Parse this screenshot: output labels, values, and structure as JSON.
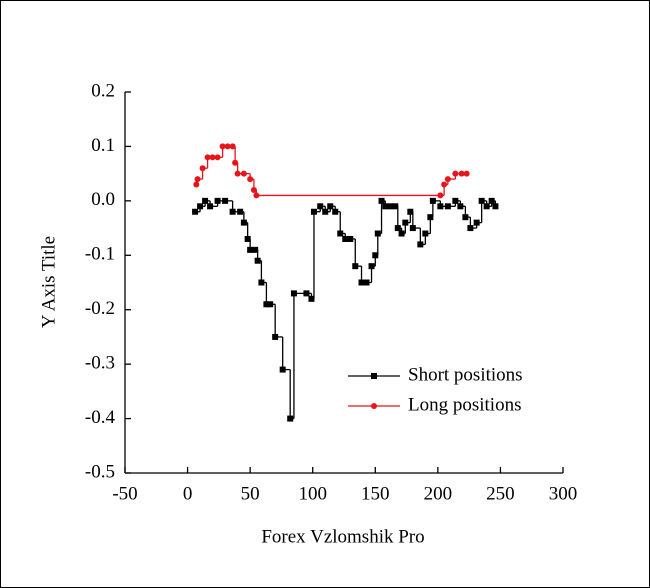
{
  "chart_data": {
    "type": "line",
    "step": "post",
    "x_label": "Forex Vzlomshik Pro",
    "y_label": "Y Axis Title",
    "xlim": [
      -50,
      300
    ],
    "xticks": [
      -50,
      0,
      50,
      100,
      150,
      200,
      250,
      300
    ],
    "ylim": [
      -0.5,
      0.2
    ],
    "yticks": [
      -0.5,
      -0.4,
      -0.3,
      -0.2,
      -0.1,
      {
        "value": 0,
        "label": "0.0"
      },
      0.1,
      0.2
    ],
    "legend": "lower right",
    "series": [
      {
        "name": "Short positions",
        "color": "#000000",
        "marker": "square",
        "x": [
          6,
          10,
          14,
          18,
          24,
          30,
          36,
          42,
          45,
          48,
          50,
          54,
          56,
          59,
          63,
          66,
          70,
          76,
          82,
          85,
          95,
          99,
          101,
          106,
          110,
          114,
          118,
          122,
          126,
          130,
          134,
          139,
          143,
          147,
          150,
          152,
          155,
          158,
          162,
          166,
          168,
          171,
          174,
          178,
          180,
          186,
          190,
          194,
          196,
          202,
          208,
          214,
          218,
          222,
          226,
          231,
          235,
          239,
          243,
          246
        ],
        "values": [
          -0.02,
          -0.01,
          0,
          -0.01,
          0,
          0,
          -0.02,
          -0.02,
          -0.04,
          -0.07,
          -0.09,
          -0.09,
          -0.11,
          -0.15,
          -0.19,
          -0.19,
          -0.25,
          -0.31,
          -0.4,
          -0.17,
          -0.17,
          -0.18,
          -0.02,
          -0.01,
          -0.02,
          -0.01,
          -0.02,
          -0.06,
          -0.07,
          -0.07,
          -0.12,
          -0.15,
          -0.15,
          -0.12,
          -0.1,
          -0.06,
          0,
          -0.01,
          -0.01,
          -0.01,
          -0.05,
          -0.06,
          -0.04,
          -0.02,
          -0.05,
          -0.08,
          -0.06,
          -0.03,
          0,
          -0.01,
          -0.01,
          0,
          -0.01,
          -0.03,
          -0.05,
          -0.04,
          0,
          -0.01,
          0,
          -0.01
        ]
      },
      {
        "name": "Long positions",
        "color": "#e8141b",
        "marker": "circle",
        "x": [
          7,
          8,
          12,
          16,
          20,
          24,
          28,
          32,
          36,
          38,
          40,
          45,
          50,
          53,
          55,
          202,
          205,
          208,
          214,
          219,
          223
        ],
        "values": [
          0.03,
          0.04,
          0.06,
          0.08,
          0.08,
          0.08,
          0.1,
          0.1,
          0.1,
          0.07,
          0.05,
          0.05,
          0.04,
          0.02,
          0.01,
          0.01,
          0.03,
          0.04,
          0.05,
          0.05,
          0.05
        ]
      }
    ]
  }
}
